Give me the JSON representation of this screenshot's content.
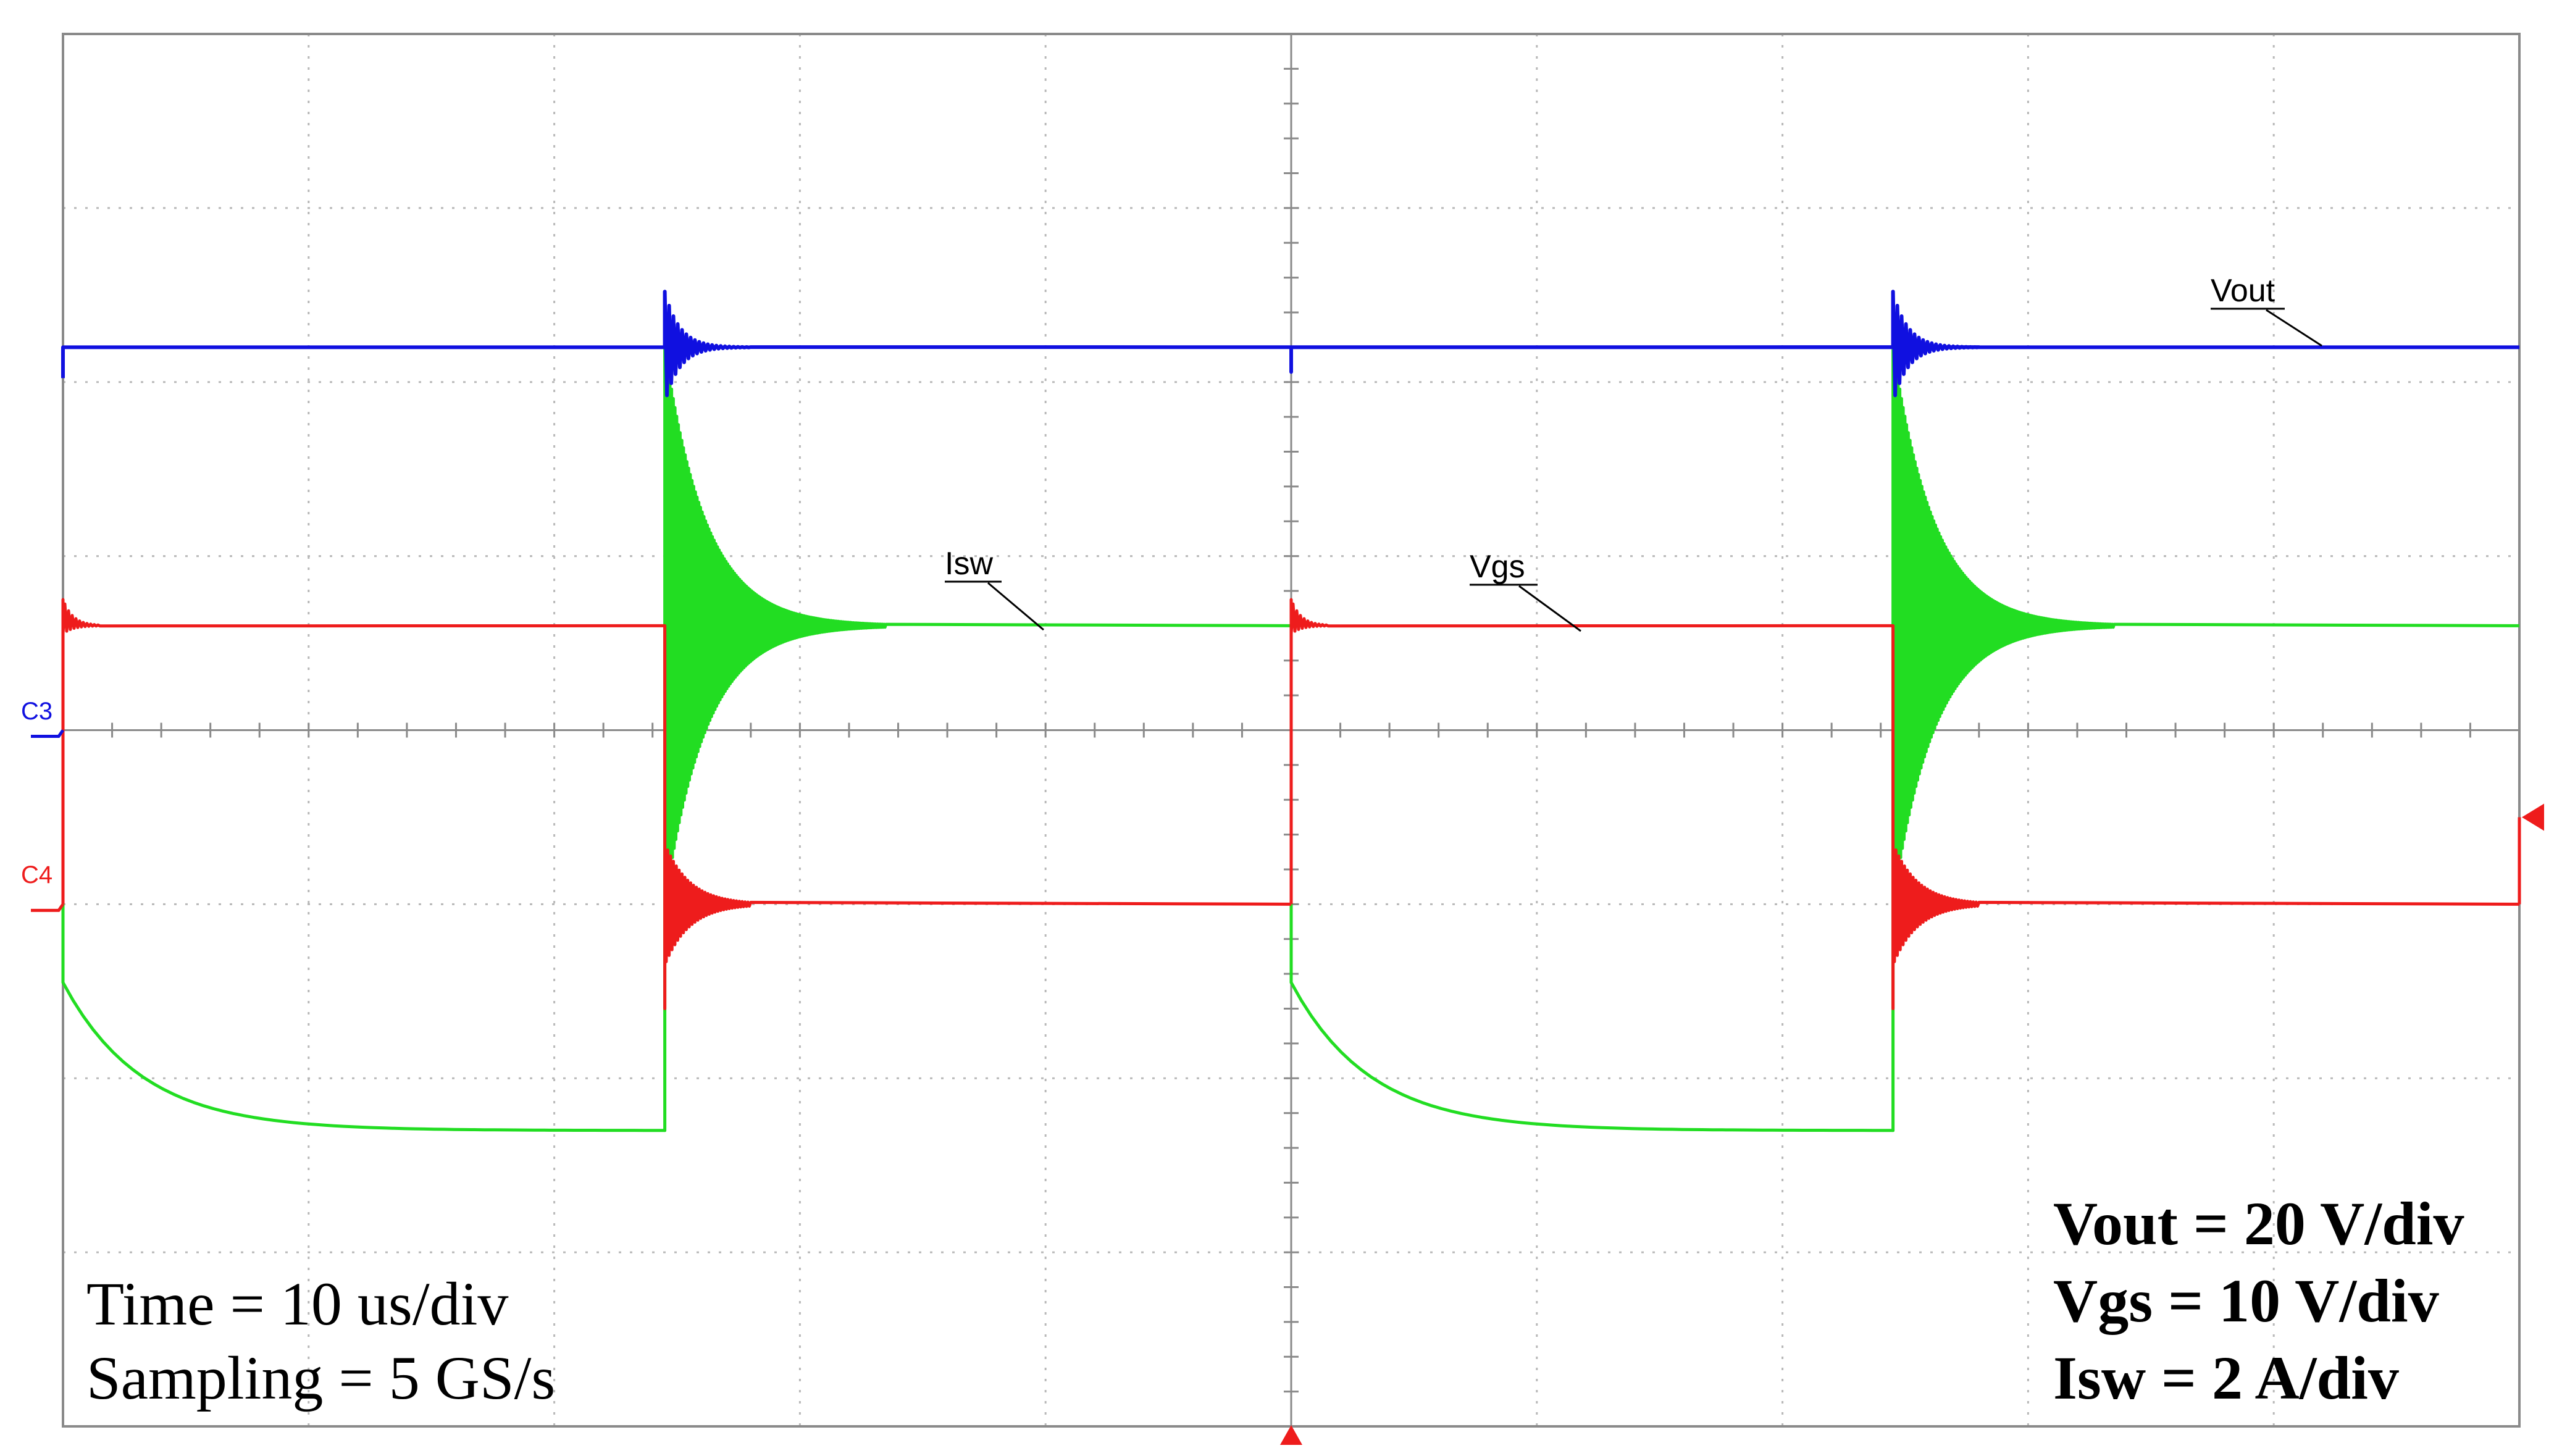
{
  "colors": {
    "vout": "#1010e0",
    "vgs": "#ee1c1c",
    "vgs_dark": "#a00000",
    "isw": "#22dd22",
    "isw_dark": "#118811",
    "grid": "#b8b8b8",
    "frame": "#8a8a8a",
    "c3": "#1010e0",
    "c4": "#ee1c1c"
  },
  "chart_data": {
    "type": "line",
    "x_label": "",
    "y_label": "",
    "xlim_div": [
      0,
      10
    ],
    "ylim_div": [
      -4,
      4
    ],
    "grid": true,
    "grid_divisions": {
      "x": 10,
      "y": 8
    },
    "series": [
      {
        "name": "Vout",
        "level_div": 2.2,
        "spike_times_div": [
          2.45,
          7.45
        ]
      },
      {
        "name": "Vgs",
        "high_div": 0.6,
        "low_div": -1.0,
        "edges_div": [
          0.0,
          2.45,
          5.0,
          7.45
        ]
      },
      {
        "name": "Isw",
        "on_start_div": -1.45,
        "on_end_div": -2.3,
        "off_level_div": 0.6,
        "edges_div": [
          0.0,
          2.45,
          5.0,
          7.45
        ]
      }
    ],
    "markers": {
      "c3": "C3",
      "c4": "C4"
    },
    "annotations": {
      "vout": "Vout",
      "isw": "Isw",
      "vgs": "Vgs",
      "time": "Time = 10 us/div",
      "sampling": "Sampling = 5 GS/s",
      "vout_scale": "Vout = 20 V/div",
      "vgs_scale": "Vgs  = 10 V/div",
      "isw_scale": "Isw = 2 A/div"
    }
  }
}
